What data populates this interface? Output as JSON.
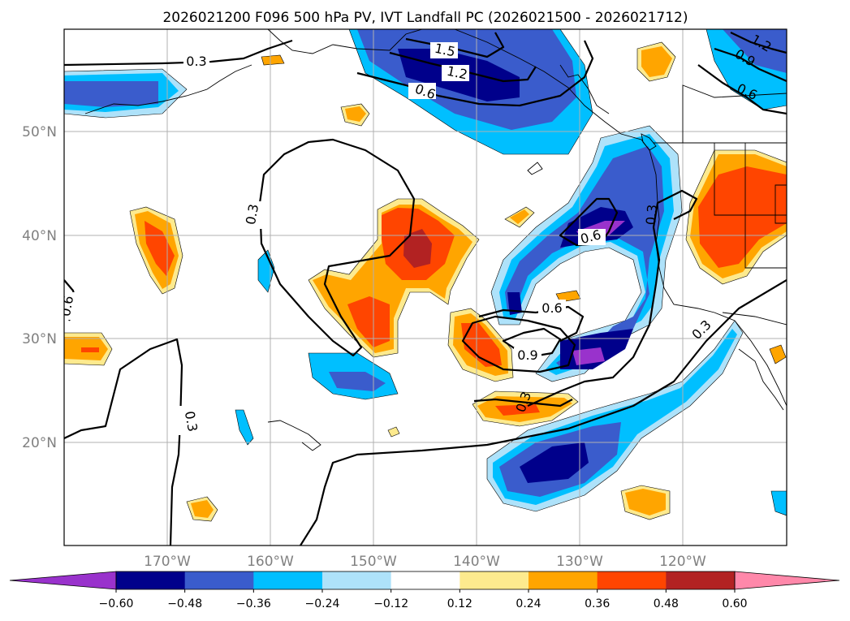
{
  "title": "2026021200 F096 500 hPa PV, IVT Landfall PC (2026021500 - 2026021712)",
  "map": {
    "lat_labels": [
      "50°N",
      "40°N",
      "30°N",
      "20°N"
    ],
    "lon_labels": [
      "170°W",
      "160°W",
      "150°W",
      "140°W",
      "130°W",
      "120°W"
    ],
    "latitudes": [
      50,
      40,
      30,
      20
    ],
    "longitudes": [
      -170,
      -160,
      -150,
      -140,
      -130,
      -120
    ]
  },
  "colorbar": {
    "ticks": [
      "−0.60",
      "−0.48",
      "−0.36",
      "−0.24",
      "−0.12",
      "0.12",
      "0.24",
      "0.36",
      "0.48",
      "0.60"
    ],
    "colors": [
      "#9932cc",
      "#00008b",
      "#3a5ccc",
      "#00bfff",
      "#aee2fa",
      "#ffffff",
      "#fdea8e",
      "#ffa500",
      "#ff4500",
      "#b22222",
      "#ff88aa"
    ]
  },
  "contour_labels": [
    "0.3",
    "0.3",
    "0.3",
    "0.3",
    "0.3",
    "0.6",
    "0.6",
    "0.6",
    "0.6",
    "0.6",
    "0.9",
    "0.9",
    "1.2",
    "1.2",
    "1.5"
  ]
}
